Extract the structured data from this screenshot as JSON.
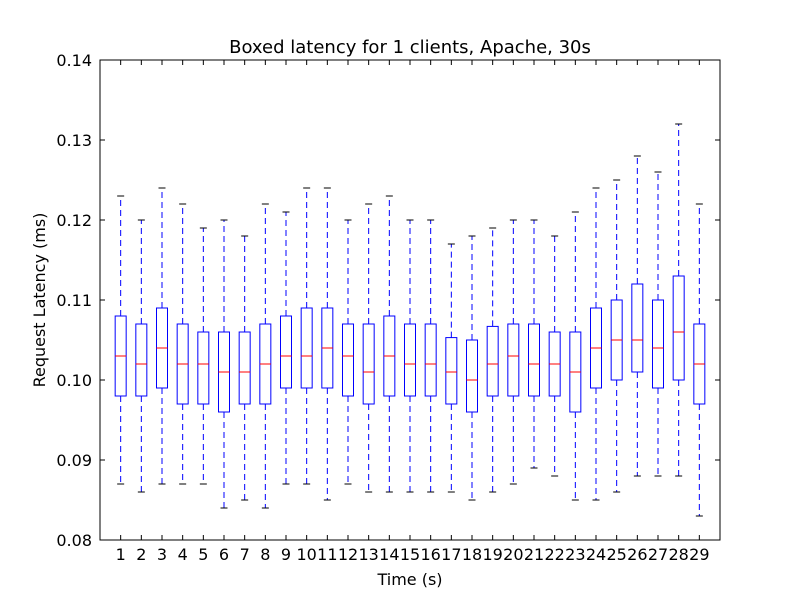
{
  "chart_data": {
    "type": "box",
    "title": "Boxed latency for 1 clients, Apache, 30s",
    "xlabel": "Time (s)",
    "ylabel": "Request Latency (ms)",
    "ylim": [
      0.08,
      0.14
    ],
    "yticks": [
      "0.08",
      "0.09",
      "0.10",
      "0.11",
      "0.12",
      "0.13",
      "0.14"
    ],
    "grid": false,
    "colors": {
      "box": "#0000ff",
      "median": "#ff0000",
      "axes": "#000000"
    },
    "categories": [
      "1",
      "2",
      "3",
      "4",
      "5",
      "6",
      "7",
      "8",
      "9",
      "10",
      "11",
      "12",
      "13",
      "14",
      "15",
      "16",
      "17",
      "18",
      "19",
      "20",
      "21",
      "22",
      "23",
      "24",
      "25",
      "26",
      "27",
      "28",
      "29"
    ],
    "boxes": [
      {
        "min": 0.087,
        "q1": 0.098,
        "median": 0.103,
        "q3": 0.108,
        "max": 0.123
      },
      {
        "min": 0.086,
        "q1": 0.098,
        "median": 0.102,
        "q3": 0.107,
        "max": 0.12
      },
      {
        "min": 0.087,
        "q1": 0.099,
        "median": 0.104,
        "q3": 0.109,
        "max": 0.124
      },
      {
        "min": 0.087,
        "q1": 0.097,
        "median": 0.102,
        "q3": 0.107,
        "max": 0.122
      },
      {
        "min": 0.087,
        "q1": 0.097,
        "median": 0.102,
        "q3": 0.106,
        "max": 0.119
      },
      {
        "min": 0.084,
        "q1": 0.096,
        "median": 0.101,
        "q3": 0.106,
        "max": 0.12
      },
      {
        "min": 0.085,
        "q1": 0.097,
        "median": 0.101,
        "q3": 0.106,
        "max": 0.118
      },
      {
        "min": 0.084,
        "q1": 0.097,
        "median": 0.102,
        "q3": 0.107,
        "max": 0.122
      },
      {
        "min": 0.087,
        "q1": 0.099,
        "median": 0.103,
        "q3": 0.108,
        "max": 0.121
      },
      {
        "min": 0.087,
        "q1": 0.099,
        "median": 0.103,
        "q3": 0.109,
        "max": 0.124
      },
      {
        "min": 0.085,
        "q1": 0.099,
        "median": 0.104,
        "q3": 0.109,
        "max": 0.124
      },
      {
        "min": 0.087,
        "q1": 0.098,
        "median": 0.103,
        "q3": 0.107,
        "max": 0.12
      },
      {
        "min": 0.086,
        "q1": 0.097,
        "median": 0.101,
        "q3": 0.107,
        "max": 0.122
      },
      {
        "min": 0.086,
        "q1": 0.098,
        "median": 0.103,
        "q3": 0.108,
        "max": 0.123
      },
      {
        "min": 0.086,
        "q1": 0.098,
        "median": 0.102,
        "q3": 0.107,
        "max": 0.12
      },
      {
        "min": 0.086,
        "q1": 0.098,
        "median": 0.102,
        "q3": 0.107,
        "max": 0.12
      },
      {
        "min": 0.086,
        "q1": 0.097,
        "median": 0.101,
        "q3": 0.1053,
        "max": 0.117
      },
      {
        "min": 0.085,
        "q1": 0.096,
        "median": 0.1,
        "q3": 0.105,
        "max": 0.118
      },
      {
        "min": 0.086,
        "q1": 0.098,
        "median": 0.102,
        "q3": 0.1067,
        "max": 0.119
      },
      {
        "min": 0.087,
        "q1": 0.098,
        "median": 0.103,
        "q3": 0.107,
        "max": 0.12
      },
      {
        "min": 0.089,
        "q1": 0.098,
        "median": 0.102,
        "q3": 0.107,
        "max": 0.12
      },
      {
        "min": 0.088,
        "q1": 0.098,
        "median": 0.102,
        "q3": 0.106,
        "max": 0.118
      },
      {
        "min": 0.085,
        "q1": 0.096,
        "median": 0.101,
        "q3": 0.106,
        "max": 0.121
      },
      {
        "min": 0.085,
        "q1": 0.099,
        "median": 0.104,
        "q3": 0.109,
        "max": 0.124
      },
      {
        "min": 0.086,
        "q1": 0.1,
        "median": 0.105,
        "q3": 0.11,
        "max": 0.125
      },
      {
        "min": 0.088,
        "q1": 0.101,
        "median": 0.105,
        "q3": 0.112,
        "max": 0.128
      },
      {
        "min": 0.088,
        "q1": 0.099,
        "median": 0.104,
        "q3": 0.11,
        "max": 0.126
      },
      {
        "min": 0.088,
        "q1": 0.1,
        "median": 0.106,
        "q3": 0.113,
        "max": 0.132
      },
      {
        "min": 0.083,
        "q1": 0.097,
        "median": 0.102,
        "q3": 0.107,
        "max": 0.122
      }
    ]
  }
}
